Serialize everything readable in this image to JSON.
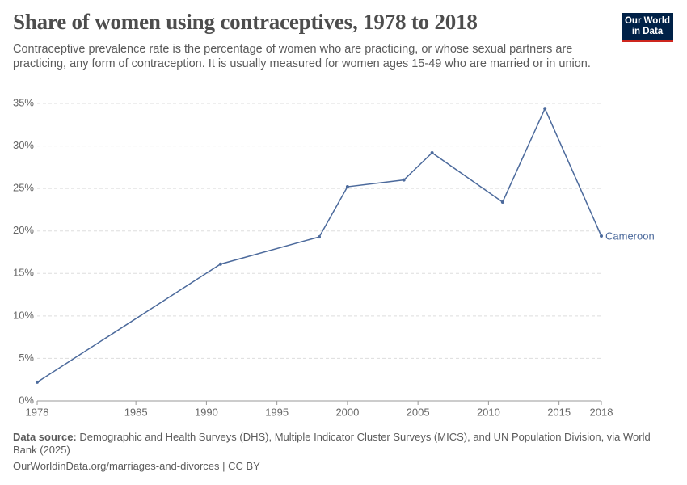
{
  "chart_data": {
    "type": "line",
    "title": "Share of women using contraceptives, 1978 to 2018",
    "subtitle": "Contraceptive prevalence rate is the percentage of women who are practicing, or whose sexual partners are practicing, any form of contraception. It is usually measured for women ages 15-49 who are married or in union.",
    "logo": [
      "Our World",
      "in Data"
    ],
    "source_label": "Data source:",
    "source_text": "Demographic and Health Surveys (DHS), Multiple Indicator Cluster Surveys (MICS), and UN Population Division, via World Bank (2025)",
    "footer": "OurWorldinData.org/marriages-and-divorces | CC BY",
    "x": [
      1978,
      1991,
      1998,
      2000,
      2004,
      2006,
      2011,
      2014,
      2018
    ],
    "series": [
      {
        "name": "Cameroon",
        "color": "#4c6a9c",
        "values": [
          2.2,
          16.1,
          19.3,
          25.2,
          26.0,
          29.2,
          23.4,
          34.4,
          19.4
        ]
      }
    ],
    "xlim": [
      1978,
      2018
    ],
    "xticks": [
      1978,
      1985,
      1990,
      1995,
      2000,
      2005,
      2010,
      2015,
      2018
    ],
    "ylim": [
      0,
      35
    ],
    "yticks": [
      {
        "value": 0,
        "label": "0%"
      },
      {
        "value": 5,
        "label": "5%"
      },
      {
        "value": 10,
        "label": "10%"
      },
      {
        "value": 15,
        "label": "15%"
      },
      {
        "value": 20,
        "label": "20%"
      },
      {
        "value": 25,
        "label": "25%"
      },
      {
        "value": 30,
        "label": "30%"
      },
      {
        "value": 35,
        "label": "35%"
      }
    ],
    "grid": true
  }
}
